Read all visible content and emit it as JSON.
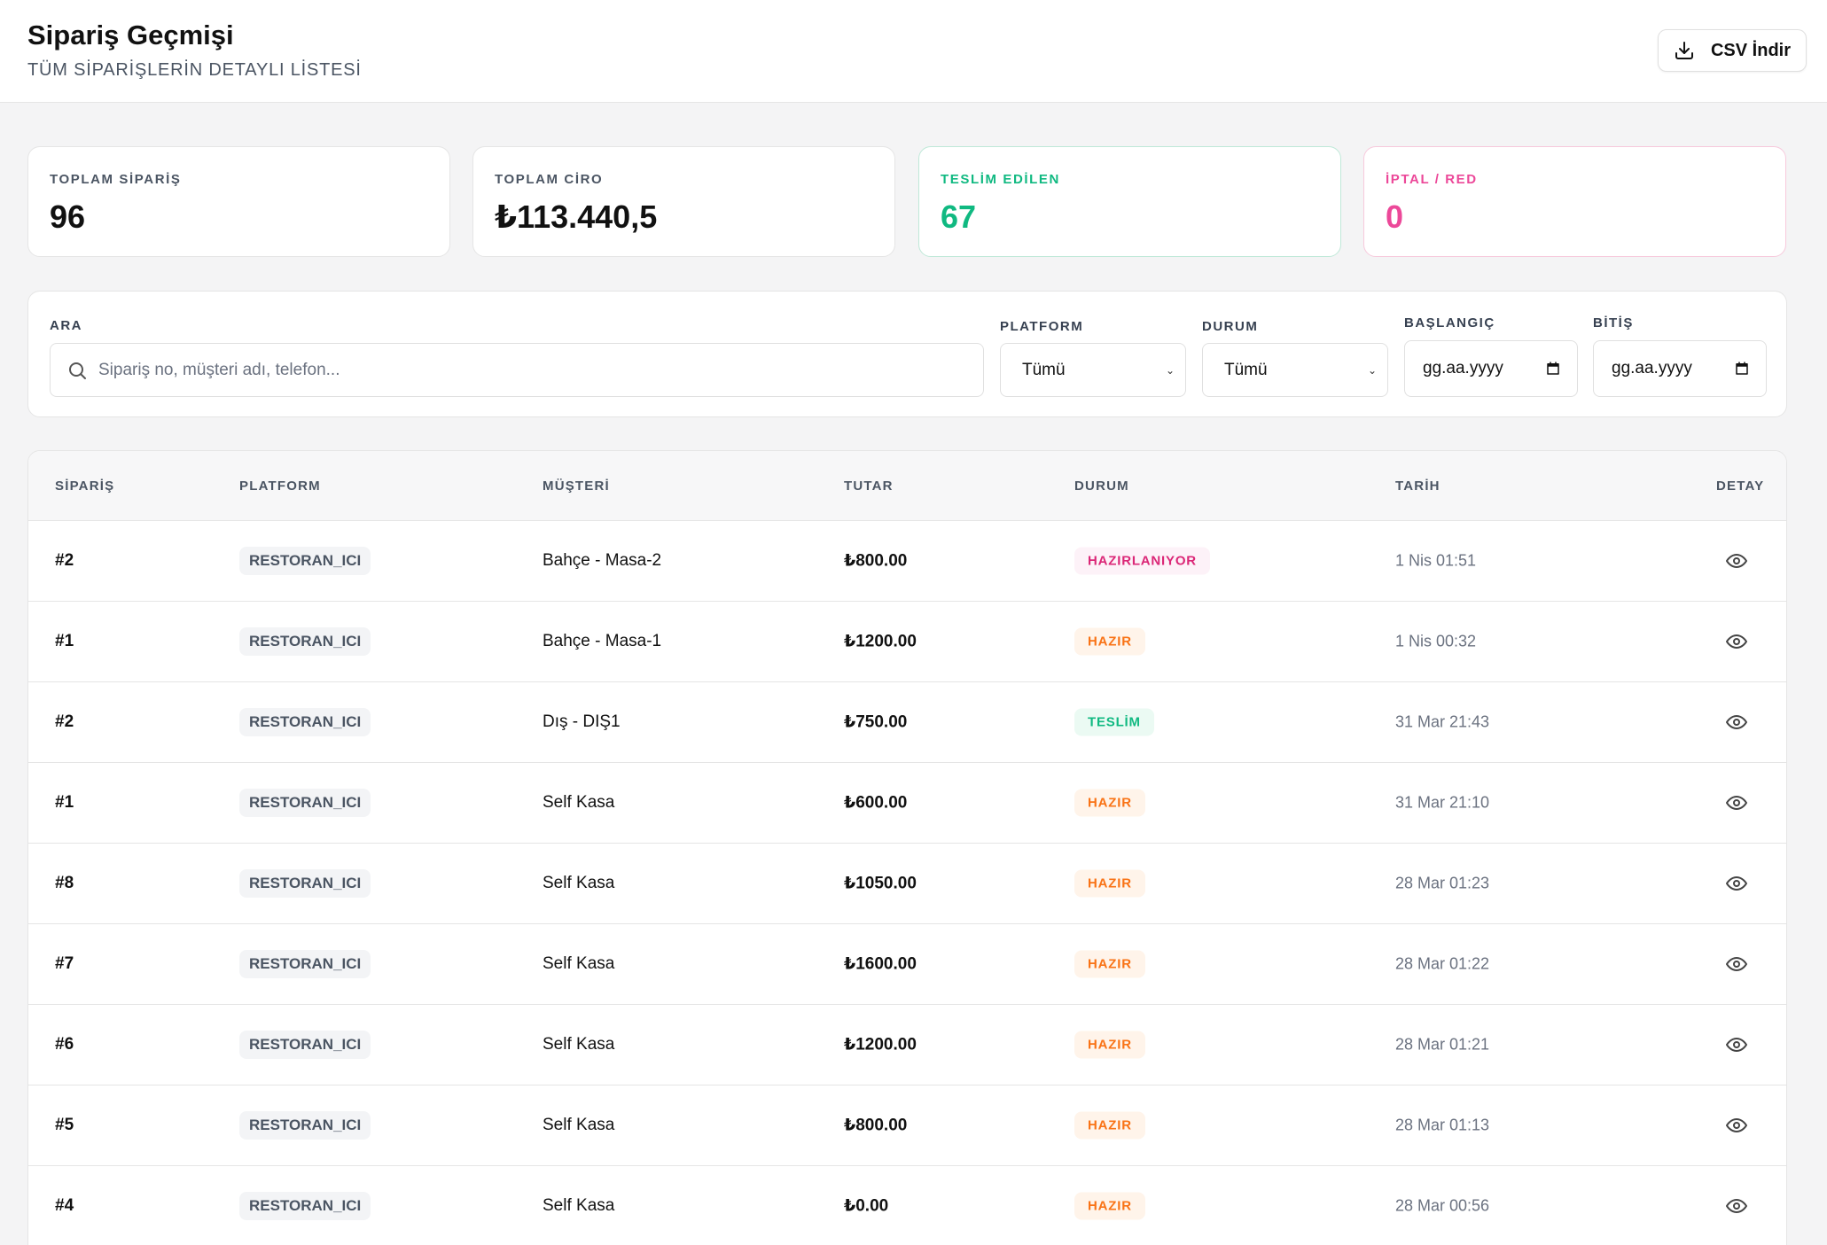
{
  "header": {
    "title": "Sipariş Geçmişi",
    "subtitle": "TÜM SİPARİŞLERİN DETAYLI LİSTESİ",
    "csv_label": "CSV İndir"
  },
  "stats": [
    {
      "label": "TOPLAM SİPARİŞ",
      "value": "96"
    },
    {
      "label": "TOPLAM CİRO",
      "value": "₺113.440,5"
    },
    {
      "label": "TESLİM EDİLEN",
      "value": "67"
    },
    {
      "label": "İPTAL / RED",
      "value": "0"
    }
  ],
  "filters": {
    "search_label": "ARA",
    "search_placeholder": "Sipariş no, müşteri adı, telefon...",
    "platform_label": "PLATFORM",
    "platform_value": "Tümü",
    "status_label": "DURUM",
    "status_value": "Tümü",
    "start_label": "BAŞLANGIÇ",
    "start_value": "gg.aa.yyyy",
    "end_label": "BİTİŞ",
    "end_value": "gg.aa.yyyy"
  },
  "table": {
    "headers": {
      "order": "SİPARİŞ",
      "platform": "PLATFORM",
      "customer": "MÜŞTERİ",
      "amount": "TUTAR",
      "status": "DURUM",
      "date": "TARİH",
      "detail": "DETAY"
    },
    "rows": [
      {
        "order": "#2",
        "platform": "RESTORAN_ICI",
        "customer": "Bahçe - Masa-2",
        "amount": "₺800.00",
        "status": "HAZIRLANIYOR",
        "date": "1 Nis 01:51"
      },
      {
        "order": "#1",
        "platform": "RESTORAN_ICI",
        "customer": "Bahçe - Masa-1",
        "amount": "₺1200.00",
        "status": "HAZIR",
        "date": "1 Nis 00:32"
      },
      {
        "order": "#2",
        "platform": "RESTORAN_ICI",
        "customer": "Dış - DIŞ1",
        "amount": "₺750.00",
        "status": "TESLİM",
        "date": "31 Mar 21:43"
      },
      {
        "order": "#1",
        "platform": "RESTORAN_ICI",
        "customer": "Self Kasa",
        "amount": "₺600.00",
        "status": "HAZIR",
        "date": "31 Mar 21:10"
      },
      {
        "order": "#8",
        "platform": "RESTORAN_ICI",
        "customer": "Self Kasa",
        "amount": "₺1050.00",
        "status": "HAZIR",
        "date": "28 Mar 01:23"
      },
      {
        "order": "#7",
        "platform": "RESTORAN_ICI",
        "customer": "Self Kasa",
        "amount": "₺1600.00",
        "status": "HAZIR",
        "date": "28 Mar 01:22"
      },
      {
        "order": "#6",
        "platform": "RESTORAN_ICI",
        "customer": "Self Kasa",
        "amount": "₺1200.00",
        "status": "HAZIR",
        "date": "28 Mar 01:21"
      },
      {
        "order": "#5",
        "platform": "RESTORAN_ICI",
        "customer": "Self Kasa",
        "amount": "₺800.00",
        "status": "HAZIR",
        "date": "28 Mar 01:13"
      },
      {
        "order": "#4",
        "platform": "RESTORAN_ICI",
        "customer": "Self Kasa",
        "amount": "₺0.00",
        "status": "HAZIR",
        "date": "28 Mar 00:56"
      }
    ]
  },
  "colors": {
    "accent_green": "#10b981",
    "accent_pink": "#ec4899",
    "status_hazir": "#f97316",
    "status_hazirlaniyor": "#db2777"
  }
}
